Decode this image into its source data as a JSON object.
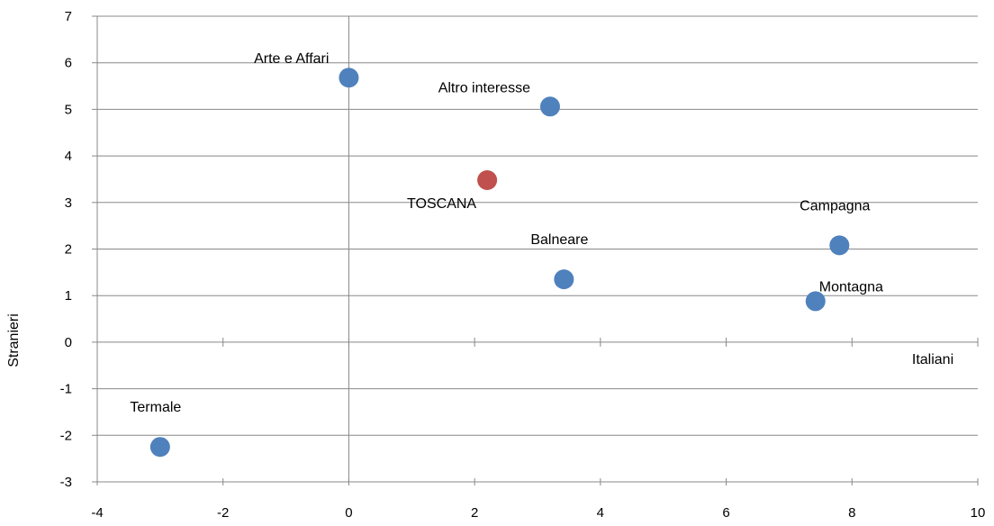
{
  "chart_data": {
    "type": "scatter",
    "title": "",
    "xlabel": "Italiani",
    "ylabel": "Stranieri",
    "xlim": [
      -4,
      10
    ],
    "ylim": [
      -3,
      7
    ],
    "xticks": [
      -4,
      -2,
      0,
      2,
      4,
      6,
      8,
      10
    ],
    "yticks": [
      -3,
      -2,
      -1,
      0,
      1,
      2,
      3,
      4,
      5,
      6,
      7
    ],
    "grid": "horizontal",
    "colors": {
      "default": "#4f81bd",
      "highlight": "#c0504d",
      "grid": "#888888",
      "axis": "#888888"
    },
    "points": [
      {
        "label": "Arte e Affari",
        "x": 0.0,
        "y": 5.68,
        "highlight": false,
        "label_pos": "upper-left"
      },
      {
        "label": "Altro interesse",
        "x": 3.2,
        "y": 5.06,
        "highlight": false,
        "label_pos": "upper-left"
      },
      {
        "label": "TOSCANA",
        "x": 2.2,
        "y": 3.48,
        "highlight": true,
        "label_pos": "lower-left"
      },
      {
        "label": "Balneare",
        "x": 3.42,
        "y": 1.35,
        "highlight": false,
        "label_pos": "upper"
      },
      {
        "label": "Campagna",
        "x": 7.8,
        "y": 2.08,
        "highlight": false,
        "label_pos": "upper"
      },
      {
        "label": "Montagna",
        "x": 7.42,
        "y": 0.88,
        "highlight": false,
        "label_pos": "upper-right"
      },
      {
        "label": "Termale",
        "x": -3.0,
        "y": -2.25,
        "highlight": false,
        "label_pos": "upper"
      }
    ]
  }
}
